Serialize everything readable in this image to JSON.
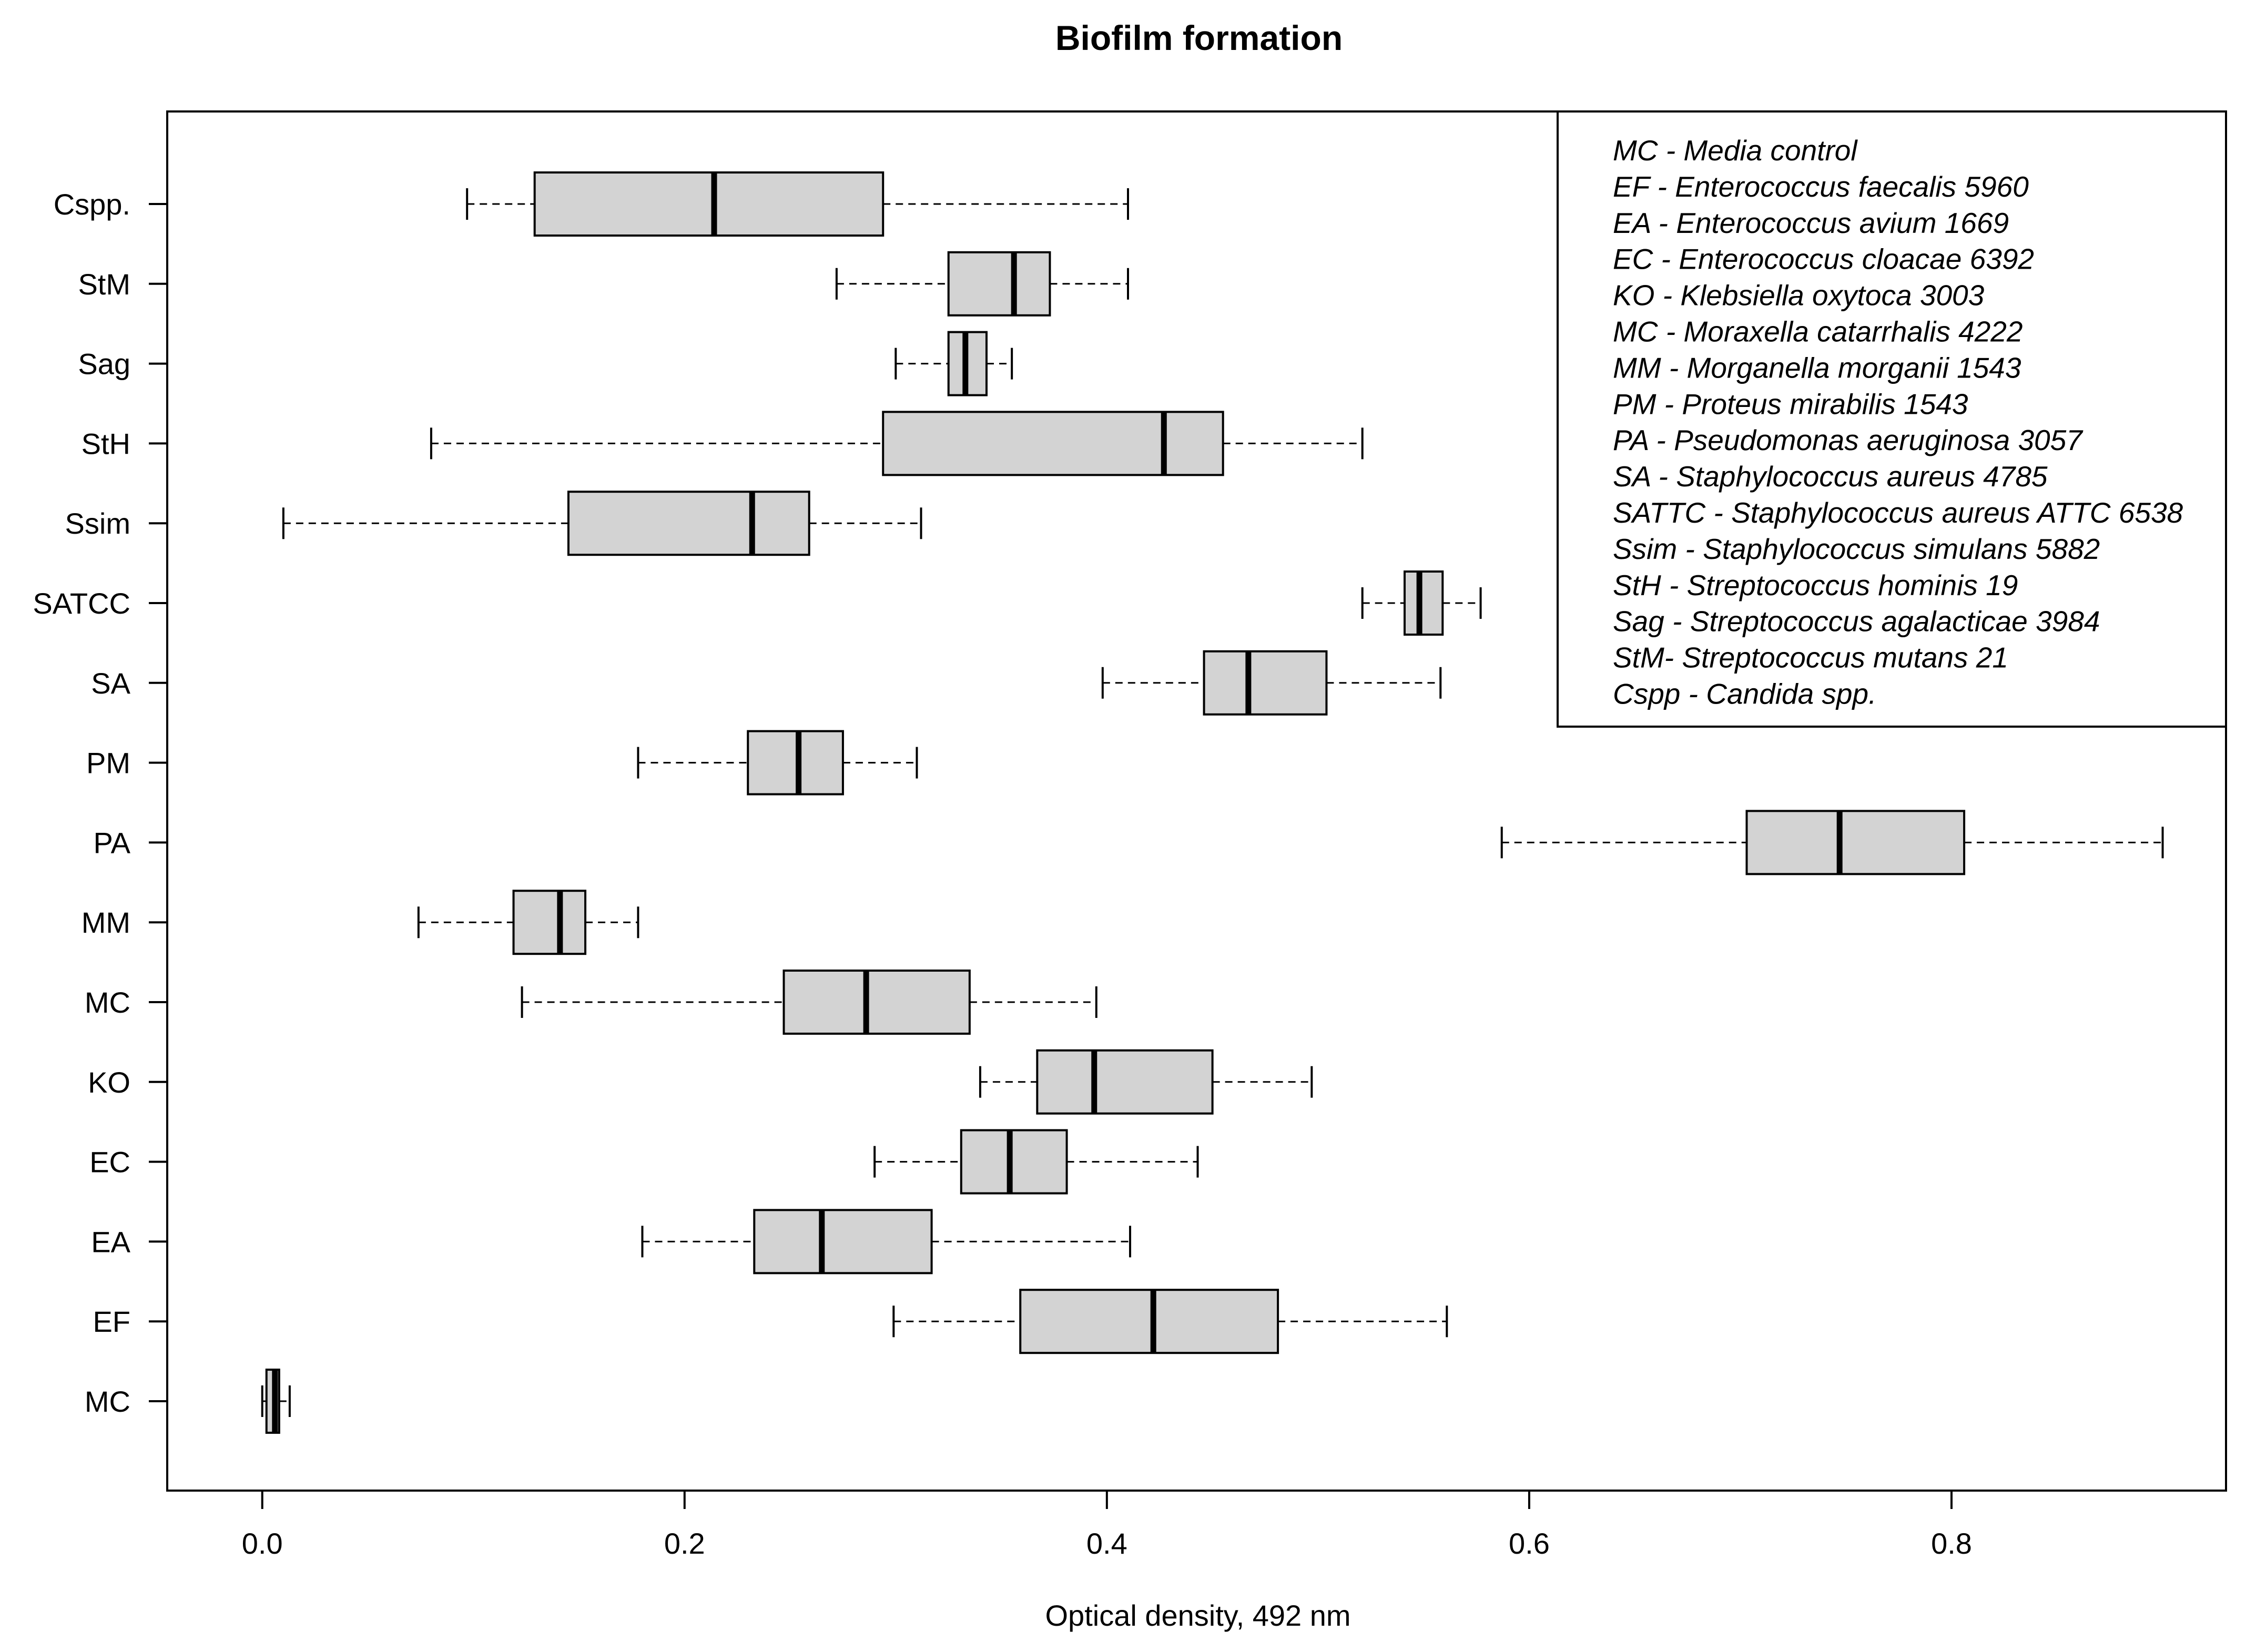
{
  "chart_data": {
    "type": "boxplot",
    "orientation": "horizontal",
    "title": "Biofilm formation",
    "xlabel": "Optical density, 492 nm",
    "ylabel": "",
    "xlim": [
      -0.045,
      0.93
    ],
    "x_ticks": [
      0.0,
      0.2,
      0.4,
      0.6,
      0.8
    ],
    "x_tick_labels": [
      "0.0",
      "0.2",
      "0.4",
      "0.6",
      "0.8"
    ],
    "box_color": "#d3d3d3",
    "grid": false,
    "categories": [
      "MC",
      "EF",
      "EA",
      "EC",
      "KO",
      "MC",
      "MM",
      "PA",
      "PM",
      "SA",
      "SATCC",
      "Ssim",
      "StH",
      "Sag",
      "StM",
      "Cspp."
    ],
    "series": [
      {
        "name": "MC",
        "min": 0.0,
        "q1": 0.002,
        "median": 0.006,
        "q3": 0.008,
        "max": 0.013
      },
      {
        "name": "EF",
        "min": 0.299,
        "q1": 0.359,
        "median": 0.422,
        "q3": 0.481,
        "max": 0.561
      },
      {
        "name": "EA",
        "min": 0.18,
        "q1": 0.233,
        "median": 0.265,
        "q3": 0.317,
        "max": 0.411
      },
      {
        "name": "EC",
        "min": 0.29,
        "q1": 0.331,
        "median": 0.354,
        "q3": 0.381,
        "max": 0.443
      },
      {
        "name": "KO",
        "min": 0.34,
        "q1": 0.367,
        "median": 0.394,
        "q3": 0.45,
        "max": 0.497
      },
      {
        "name": "MC",
        "min": 0.123,
        "q1": 0.247,
        "median": 0.286,
        "q3": 0.335,
        "max": 0.395
      },
      {
        "name": "MM",
        "min": 0.074,
        "q1": 0.119,
        "median": 0.141,
        "q3": 0.153,
        "max": 0.178
      },
      {
        "name": "PA",
        "min": 0.587,
        "q1": 0.703,
        "median": 0.747,
        "q3": 0.806,
        "max": 0.9
      },
      {
        "name": "PM",
        "min": 0.178,
        "q1": 0.23,
        "median": 0.254,
        "q3": 0.275,
        "max": 0.31
      },
      {
        "name": "SA",
        "min": 0.398,
        "q1": 0.446,
        "median": 0.467,
        "q3": 0.504,
        "max": 0.558
      },
      {
        "name": "SATCC",
        "min": 0.521,
        "q1": 0.541,
        "median": 0.548,
        "q3": 0.559,
        "max": 0.577
      },
      {
        "name": "Ssim",
        "min": 0.01,
        "q1": 0.145,
        "median": 0.232,
        "q3": 0.259,
        "max": 0.312
      },
      {
        "name": "StH",
        "min": 0.08,
        "q1": 0.294,
        "median": 0.427,
        "q3": 0.455,
        "max": 0.521
      },
      {
        "name": "Sag",
        "min": 0.3,
        "q1": 0.325,
        "median": 0.333,
        "q3": 0.343,
        "max": 0.355
      },
      {
        "name": "StM",
        "min": 0.272,
        "q1": 0.325,
        "median": 0.356,
        "q3": 0.373,
        "max": 0.41
      },
      {
        "name": "Cspp.",
        "min": 0.097,
        "q1": 0.129,
        "median": 0.214,
        "q3": 0.294,
        "max": 0.41
      }
    ],
    "legend": {
      "position": "top-right",
      "entries": [
        "MC - Media control",
        "EF - Enterococcus  faecalis 5960",
        "EA - Enterococcus avium 1669",
        "EC - Enterococcus cloacae 6392",
        "KO - Klebsiella oxytoca 3003",
        "MC - Moraxella catarrhalis 4222",
        "MM - Morganella morganii 1543",
        "PM - Proteus mirabilis 1543",
        "PA - Pseudomonas aeruginosa 3057",
        "SA - Staphylococcus aureus 4785",
        "SATTC - Staphylococcus aureus ATTC 6538",
        "Ssim - Staphylococcus simulans 5882",
        "StH - Streptococcus hominis 19",
        "Sag - Streptococcus agalacticae 3984",
        "StM- Streptococcus mutans 21",
        "Cspp - Candida spp."
      ]
    }
  }
}
